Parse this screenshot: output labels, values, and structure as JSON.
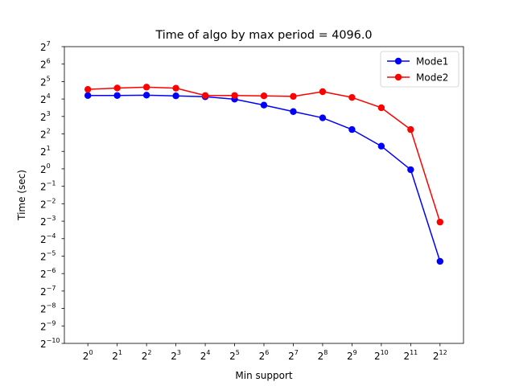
{
  "chart_data": {
    "type": "line",
    "title": "Time of algo by max period = 4096.0",
    "xlabel": "Min support",
    "ylabel": "Time (sec)",
    "x_scale": "log2",
    "y_scale": "log2",
    "x": [
      1,
      2,
      4,
      8,
      16,
      32,
      64,
      128,
      256,
      512,
      1024,
      2048,
      4096
    ],
    "x_tick_labels": [
      {
        "base": "2",
        "exp": "0"
      },
      {
        "base": "2",
        "exp": "1"
      },
      {
        "base": "2",
        "exp": "2"
      },
      {
        "base": "2",
        "exp": "3"
      },
      {
        "base": "2",
        "exp": "4"
      },
      {
        "base": "2",
        "exp": "5"
      },
      {
        "base": "2",
        "exp": "6"
      },
      {
        "base": "2",
        "exp": "7"
      },
      {
        "base": "2",
        "exp": "8"
      },
      {
        "base": "2",
        "exp": "9"
      },
      {
        "base": "2",
        "exp": "10"
      },
      {
        "base": "2",
        "exp": "11"
      },
      {
        "base": "2",
        "exp": "12"
      }
    ],
    "y_tick_labels": [
      {
        "base": "2",
        "exp": "−10"
      },
      {
        "base": "2",
        "exp": "−9"
      },
      {
        "base": "2",
        "exp": "−8"
      },
      {
        "base": "2",
        "exp": "−7"
      },
      {
        "base": "2",
        "exp": "−6"
      },
      {
        "base": "2",
        "exp": "−5"
      },
      {
        "base": "2",
        "exp": "−4"
      },
      {
        "base": "2",
        "exp": "−3"
      },
      {
        "base": "2",
        "exp": "−2"
      },
      {
        "base": "2",
        "exp": "−1"
      },
      {
        "base": "2",
        "exp": "0"
      },
      {
        "base": "2",
        "exp": "1"
      },
      {
        "base": "2",
        "exp": "2"
      },
      {
        "base": "2",
        "exp": "3"
      },
      {
        "base": "2",
        "exp": "4"
      },
      {
        "base": "2",
        "exp": "5"
      },
      {
        "base": "2",
        "exp": "6"
      },
      {
        "base": "2",
        "exp": "7"
      }
    ],
    "xlim_log2": [
      -0.8,
      12.8
    ],
    "ylim_log2": [
      -10,
      7
    ],
    "series": [
      {
        "name": "Mode1",
        "color": "#0000ff",
        "values_log2": [
          4.2,
          4.2,
          4.22,
          4.18,
          4.13,
          3.99,
          3.65,
          3.28,
          2.92,
          2.25,
          1.3,
          -0.05,
          -5.3
        ]
      },
      {
        "name": "Mode2",
        "color": "#ff0000",
        "values_log2": [
          4.55,
          4.63,
          4.68,
          4.62,
          4.2,
          4.2,
          4.18,
          4.15,
          4.42,
          4.09,
          3.5,
          2.25,
          -3.05
        ]
      }
    ],
    "legend_position": "top-right",
    "grid": false
  }
}
